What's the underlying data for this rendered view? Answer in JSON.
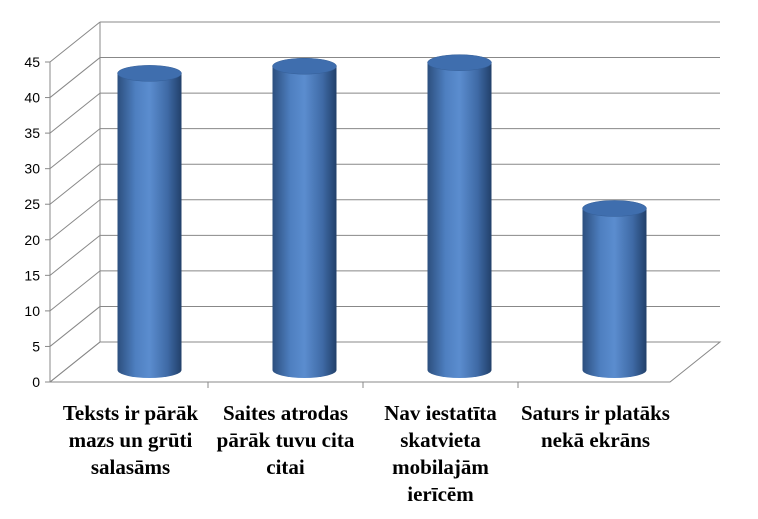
{
  "chart_data": {
    "type": "bar",
    "style": "3d-cylinder",
    "categories": [
      "Teksts ir pārāk mazs un grūti salasāms",
      "Saites atrodas pārāk tuvu cita citai",
      "Nav iestatīta skatvieta mobilajām ierīcēm",
      "Saturs ir platāks nekā ekrāns"
    ],
    "values": [
      42,
      43,
      43.5,
      23
    ],
    "ylim": [
      0,
      45
    ],
    "yticks": [
      "0",
      "5",
      "10",
      "15",
      "20",
      "25",
      "30",
      "35",
      "40",
      "45"
    ],
    "grid": true,
    "legend": "none",
    "colors": {
      "bar": "#4f81bd",
      "grid": "#888888"
    }
  }
}
